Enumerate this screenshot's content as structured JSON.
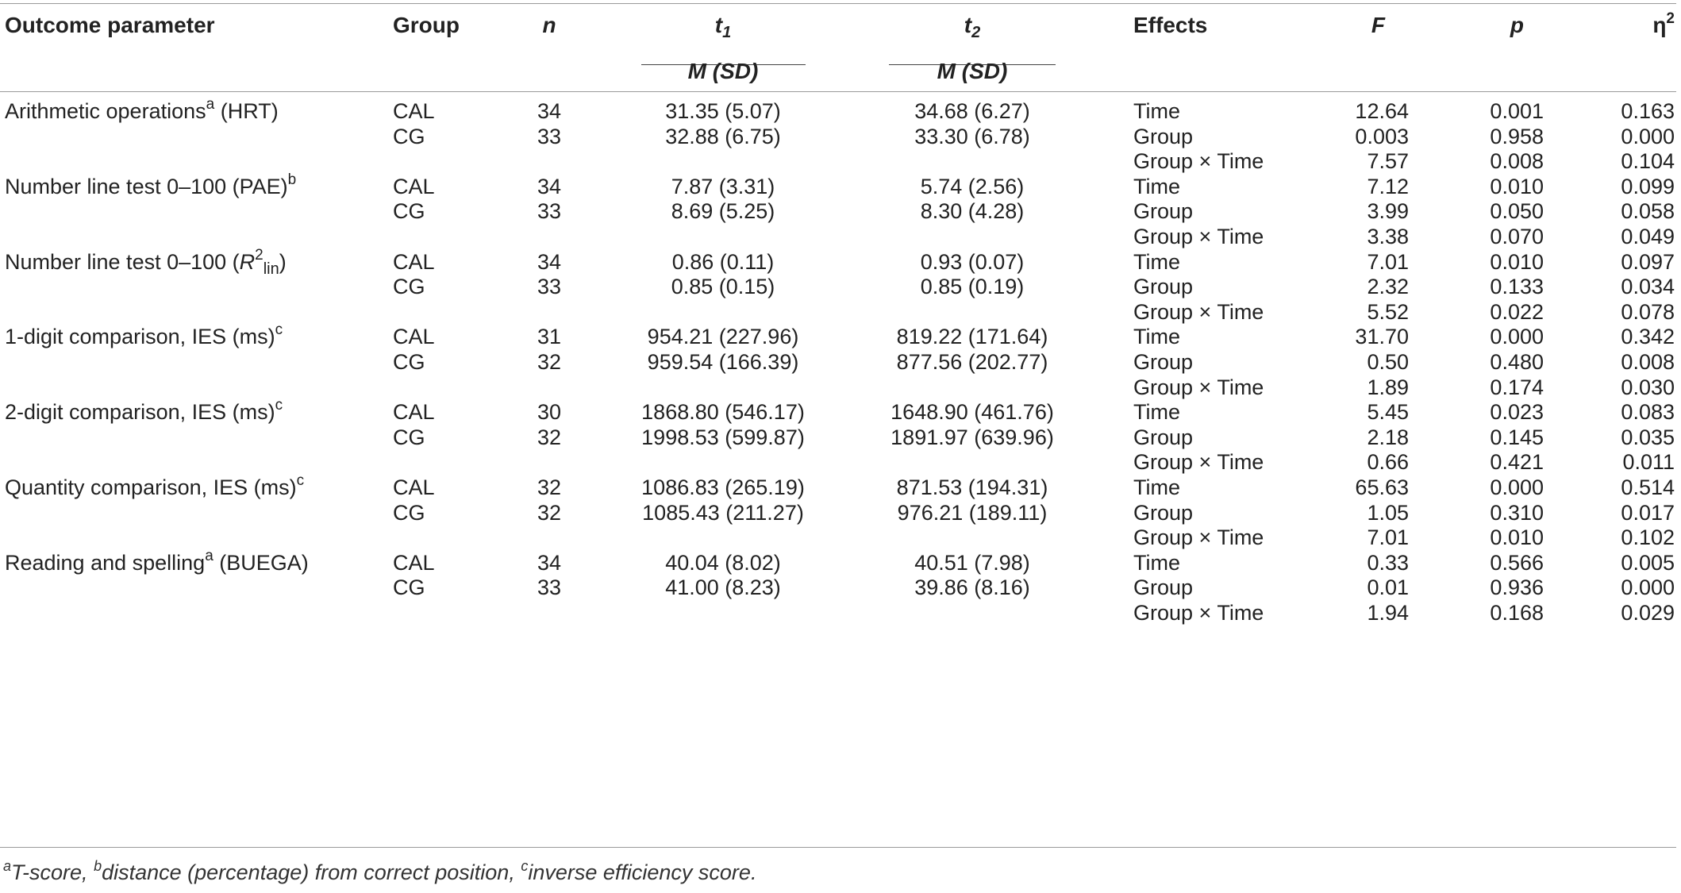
{
  "header": {
    "outcome": "Outcome parameter",
    "group": "Group",
    "n": "n",
    "t1_base": "t",
    "t1_sub": "1",
    "t2_base": "t",
    "t2_sub": "2",
    "msd_t1": "M (SD)",
    "msd_t2": "M (SD)",
    "effects": "Effects",
    "F": "F",
    "p": "p",
    "eta_base": "η",
    "eta_sup": "2"
  },
  "rows": [
    {
      "outcome": "Arithmetic operations",
      "outcome_sup": "a",
      "outcome_tail": " (HRT)",
      "group": "CAL",
      "n": "34",
      "t1": "31.35 (5.07)",
      "t2": "34.68 (6.27)",
      "effect": "Time",
      "F": "12.64",
      "p": "0.001",
      "eta": "0.163"
    },
    {
      "outcome": "",
      "group": "CG",
      "n": "33",
      "t1": "32.88 (6.75)",
      "t2": "33.30 (6.78)",
      "effect": "Group",
      "F": "0.003",
      "p": "0.958",
      "eta": "0.000"
    },
    {
      "outcome": "",
      "group": "",
      "n": "",
      "t1": "",
      "t2": "",
      "effect": "Group × Time",
      "F": "7.57",
      "p": "0.008",
      "eta": "0.104"
    },
    {
      "outcome": "Number line test 0–100 (PAE)",
      "outcome_sup": "b",
      "outcome_tail": "",
      "group": "CAL",
      "n": "34",
      "t1": "7.87 (3.31)",
      "t2": "5.74 (2.56)",
      "effect": "Time",
      "F": "7.12",
      "p": "0.010",
      "eta": "0.099"
    },
    {
      "outcome": "",
      "group": "CG",
      "n": "33",
      "t1": "8.69 (5.25)",
      "t2": "8.30 (4.28)",
      "effect": "Group",
      "F": "3.99",
      "p": "0.050",
      "eta": "0.058"
    },
    {
      "outcome": "",
      "group": "",
      "n": "",
      "t1": "",
      "t2": "",
      "effect": "Group × Time",
      "F": "3.38",
      "p": "0.070",
      "eta": "0.049"
    },
    {
      "outcome": "Number line test 0–100 (R2lin)",
      "group": "CAL",
      "n": "34",
      "t1": "0.86 (0.11)",
      "t2": "0.93 (0.07)",
      "effect": "Time",
      "F": "7.01",
      "p": "0.010",
      "eta": "0.097"
    },
    {
      "outcome": "",
      "group": "CG",
      "n": "33",
      "t1": "0.85 (0.15)",
      "t2": "0.85 (0.19)",
      "effect": "Group",
      "F": "2.32",
      "p": "0.133",
      "eta": "0.034"
    },
    {
      "outcome": "",
      "group": "",
      "n": "",
      "t1": "",
      "t2": "",
      "effect": "Group × Time",
      "F": "5.52",
      "p": "0.022",
      "eta": "0.078"
    },
    {
      "outcome": "1-digit comparison, IES (ms)",
      "outcome_sup": "c",
      "outcome_tail": "",
      "group": "CAL",
      "n": "31",
      "t1": "954.21 (227.96)",
      "t2": "819.22 (171.64)",
      "effect": "Time",
      "F": "31.70",
      "p": "0.000",
      "eta": "0.342"
    },
    {
      "outcome": "",
      "group": "CG",
      "n": "32",
      "t1": "959.54 (166.39)",
      "t2": "877.56 (202.77)",
      "effect": "Group",
      "F": "0.50",
      "p": "0.480",
      "eta": "0.008"
    },
    {
      "outcome": "",
      "group": "",
      "n": "",
      "t1": "",
      "t2": "",
      "effect": "Group × Time",
      "F": "1.89",
      "p": "0.174",
      "eta": "0.030"
    },
    {
      "outcome": "2-digit comparison, IES (ms)",
      "outcome_sup": "c",
      "outcome_tail": "",
      "group": "CAL",
      "n": "30",
      "t1": "1868.80 (546.17)",
      "t2": "1648.90 (461.76)",
      "effect": "Time",
      "F": "5.45",
      "p": "0.023",
      "eta": "0.083"
    },
    {
      "outcome": "",
      "group": "CG",
      "n": "32",
      "t1": "1998.53 (599.87)",
      "t2": "1891.97 (639.96)",
      "effect": "Group",
      "F": "2.18",
      "p": "0.145",
      "eta": "0.035"
    },
    {
      "outcome": "",
      "group": "",
      "n": "",
      "t1": "",
      "t2": "",
      "effect": "Group × Time",
      "F": "0.66",
      "p": "0.421",
      "eta": "0.011"
    },
    {
      "outcome": "Quantity comparison, IES (ms)",
      "outcome_sup": "c",
      "outcome_tail": "",
      "group": "CAL",
      "n": "32",
      "t1": "1086.83 (265.19)",
      "t2": "871.53 (194.31)",
      "effect": "Time",
      "F": "65.63",
      "p": "0.000",
      "eta": "0.514"
    },
    {
      "outcome": "",
      "group": "CG",
      "n": "32",
      "t1": "1085.43 (211.27)",
      "t2": "976.21 (189.11)",
      "effect": "Group",
      "F": "1.05",
      "p": "0.310",
      "eta": "0.017"
    },
    {
      "outcome": "",
      "group": "",
      "n": "",
      "t1": "",
      "t2": "",
      "effect": "Group × Time",
      "F": "7.01",
      "p": "0.010",
      "eta": "0.102"
    },
    {
      "outcome": "Reading and spelling",
      "outcome_sup": "a",
      "outcome_tail": " (BUEGA)",
      "group": "CAL",
      "n": "34",
      "t1": "40.04 (8.02)",
      "t2": "40.51 (7.98)",
      "effect": "Time",
      "F": "0.33",
      "p": "0.566",
      "eta": "0.005"
    },
    {
      "outcome": "",
      "group": "CG",
      "n": "33",
      "t1": "41.00 (8.23)",
      "t2": "39.86 (8.16)",
      "effect": "Group",
      "F": "0.01",
      "p": "0.936",
      "eta": "0.000"
    },
    {
      "outcome": "",
      "group": "",
      "n": "",
      "t1": "",
      "t2": "",
      "effect": "Group × Time",
      "F": "1.94",
      "p": "0.168",
      "eta": "0.029"
    }
  ],
  "r2": {
    "prefix": "Number line test 0–100 (",
    "base": "R",
    "sup": "2",
    "sub": "lin",
    "suffix": ")"
  },
  "footnote": {
    "a_mark": "a",
    "a_text": "T-score, ",
    "b_mark": "b",
    "b_text": "distance (percentage) from correct position, ",
    "c_mark": "c",
    "c_text": "inverse efficiency score."
  }
}
